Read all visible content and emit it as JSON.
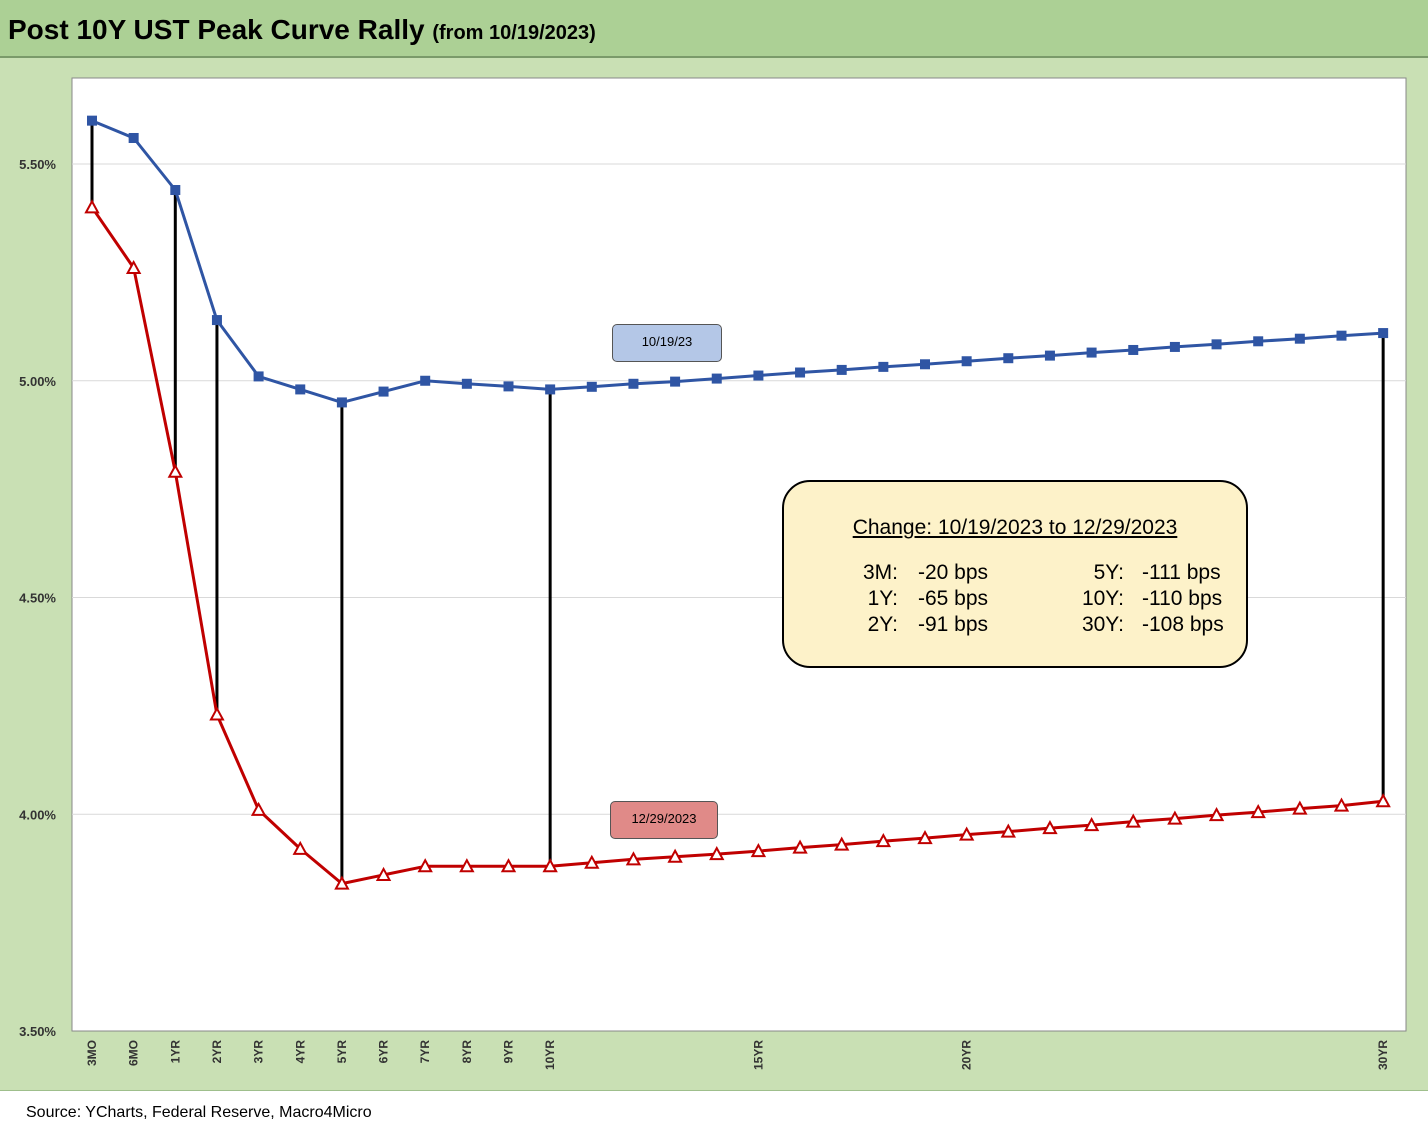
{
  "header": {
    "title": "Post 10Y UST Peak Curve Rally",
    "subtitle": "(from 10/19/2023)"
  },
  "footer": {
    "source": "Source: YCharts, Federal Reserve, Macro4Micro"
  },
  "colors": {
    "series_1": "#2f55a4",
    "series_2": "#c00000",
    "header_bg": "#acd095",
    "plot_frame_bg": "#c9e0b4",
    "label_1_bg": "#b4c7e7",
    "label_2_bg": "#e08a88",
    "change_box_bg": "#fdf2c9"
  },
  "series_labels": {
    "s1": "10/19/23",
    "s2": "12/29/2023"
  },
  "change_box": {
    "title": "Change: 10/19/2023 to 12/29/2023",
    "rows": [
      {
        "l1": "3M:",
        "v1": "-20 bps",
        "l2": "5Y:",
        "v2": "-111 bps"
      },
      {
        "l1": "1Y:",
        "v1": "-65 bps",
        "l2": "10Y:",
        "v2": "-110 bps"
      },
      {
        "l1": "2Y:",
        "v1": "-91 bps",
        "l2": "30Y:",
        "v2": "-108 bps"
      }
    ]
  },
  "chart_data": {
    "type": "line",
    "x_positions": [
      "3MO",
      "6MO",
      "1YR",
      "2YR",
      "3YR",
      "4YR",
      "5YR",
      "6YR",
      "7YR",
      "8YR",
      "9YR",
      "10YR",
      "11",
      "12",
      "13",
      "14",
      "15YR",
      "16",
      "17",
      "18",
      "19",
      "20YR",
      "21",
      "22",
      "23",
      "24",
      "25",
      "26",
      "27",
      "28",
      "29",
      "30YR"
    ],
    "x_tick_labels": [
      "3MO",
      "6MO",
      "1YR",
      "2YR",
      "3YR",
      "4YR",
      "5YR",
      "6YR",
      "7YR",
      "8YR",
      "9YR",
      "10YR",
      "",
      "",
      "",
      "",
      "15YR",
      "",
      "",
      "",
      "",
      "20YR",
      "",
      "",
      "",
      "",
      "",
      "",
      "",
      "",
      "",
      "30YR"
    ],
    "y_ticks": [
      "3.50%",
      "4.00%",
      "4.50%",
      "5.00%",
      "5.50%"
    ],
    "ylim": [
      3.5,
      5.5
    ],
    "grid": true,
    "series": [
      {
        "name": "10/19/23",
        "marker": "square",
        "values": [
          5.6,
          5.56,
          5.44,
          5.14,
          5.01,
          4.98,
          4.95,
          4.975,
          5.0,
          4.993,
          4.987,
          4.98,
          4.986,
          4.993,
          4.998,
          5.005,
          5.012,
          5.019,
          5.025,
          5.032,
          5.038,
          5.045,
          5.052,
          5.058,
          5.065,
          5.071,
          5.078,
          5.084,
          5.091,
          5.097,
          5.104,
          5.11
        ]
      },
      {
        "name": "12/29/2023",
        "marker": "triangle",
        "values": [
          5.4,
          5.26,
          4.79,
          4.23,
          4.01,
          3.92,
          3.84,
          3.86,
          3.88,
          3.88,
          3.88,
          3.88,
          3.888,
          3.896,
          3.902,
          3.908,
          3.915,
          3.923,
          3.93,
          3.938,
          3.945,
          3.953,
          3.96,
          3.968,
          3.975,
          3.983,
          3.99,
          3.998,
          4.005,
          4.013,
          4.02,
          4.03
        ]
      }
    ],
    "change_bars_at": [
      "3MO",
      "1YR",
      "2YR",
      "5YR",
      "10YR",
      "30YR"
    ]
  }
}
